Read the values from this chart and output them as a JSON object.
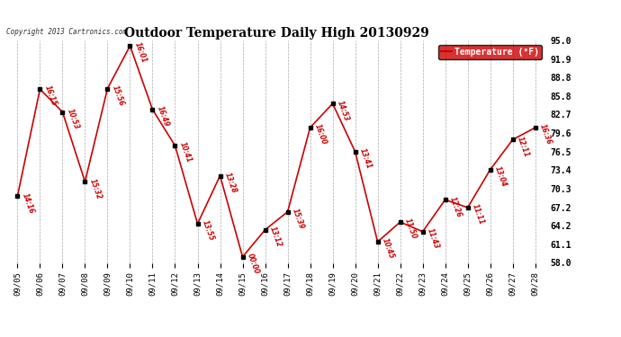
{
  "title": "Outdoor Temperature Daily High 20130929",
  "copyright": "Copyright 2013 Cartronics.com",
  "legend_label": "Temperature (°F)",
  "dates": [
    "09/05",
    "09/06",
    "09/07",
    "09/08",
    "09/09",
    "09/10",
    "09/11",
    "09/12",
    "09/13",
    "09/14",
    "09/15",
    "09/16",
    "09/17",
    "09/18",
    "09/19",
    "09/20",
    "09/21",
    "09/22",
    "09/23",
    "09/24",
    "09/25",
    "09/26",
    "09/27",
    "09/28"
  ],
  "temperatures": [
    69.1,
    86.9,
    83.1,
    71.5,
    87.0,
    94.1,
    83.5,
    77.5,
    64.5,
    72.5,
    59.0,
    63.5,
    66.5,
    80.5,
    84.5,
    76.5,
    61.5,
    64.8,
    63.2,
    68.5,
    67.2,
    73.5,
    78.5,
    80.5
  ],
  "time_labels": [
    "14:16",
    "16:15",
    "10:53",
    "15:32",
    "15:56",
    "16:01",
    "16:49",
    "10:41",
    "13:55",
    "13:28",
    "00:00",
    "13:12",
    "15:39",
    "16:00",
    "14:53",
    "13:41",
    "10:45",
    "11:50",
    "11:43",
    "12:26",
    "11:11",
    "13:04",
    "12:11",
    "16:36"
  ],
  "ylim": [
    58.0,
    95.0
  ],
  "yticks": [
    58.0,
    61.1,
    64.2,
    67.2,
    70.3,
    73.4,
    76.5,
    79.6,
    82.7,
    85.8,
    88.8,
    91.9,
    95.0
  ],
  "line_color": "#cc0000",
  "marker_color": "#000000",
  "background_color": "#ffffff",
  "grid_color": "#aaaaaa",
  "label_color": "#cc0000",
  "title_color": "#000000",
  "legend_bg": "#cc0000",
  "legend_text_color": "#ffffff"
}
